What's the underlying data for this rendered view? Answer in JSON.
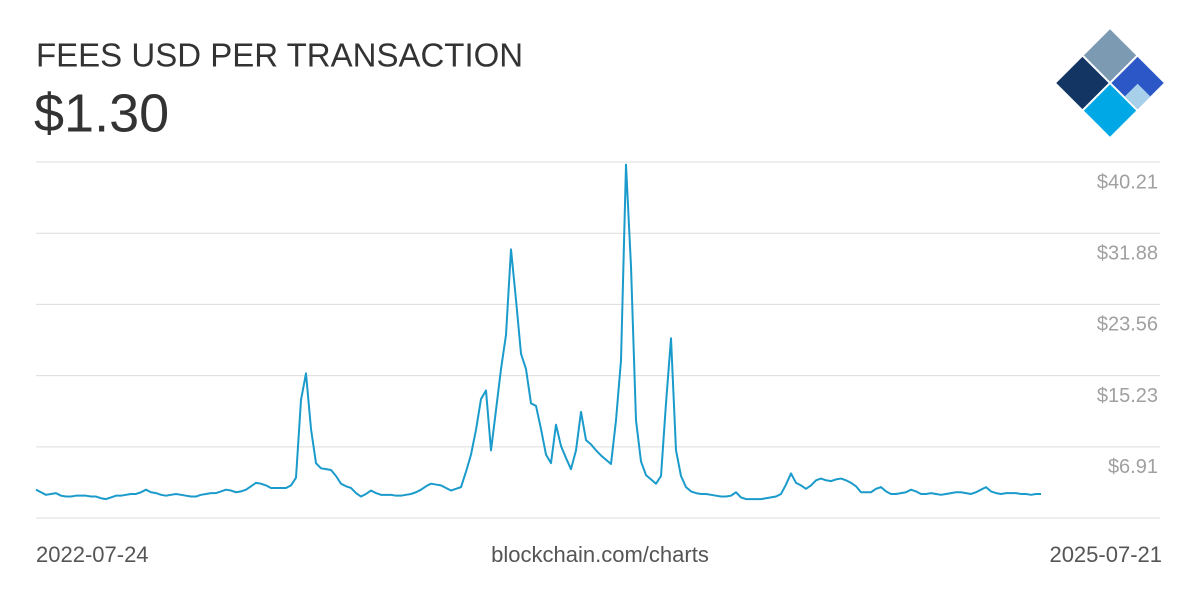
{
  "chart_data": {
    "type": "line",
    "title": "FEES USD PER TRANSACTION",
    "subtitle": "$1.30",
    "source": "blockchain.com/charts",
    "xlim": [
      "2022-07-24",
      "2025-07-21"
    ],
    "ylim": [
      -1.41,
      40.21
    ],
    "yticks": [
      {
        "value": 6.91,
        "label": "$6.91"
      },
      {
        "value": 15.23,
        "label": "$15.23"
      },
      {
        "value": 23.56,
        "label": "$23.56"
      },
      {
        "value": 31.88,
        "label": "$31.88"
      },
      {
        "value": 40.21,
        "label": "$40.21"
      }
    ],
    "grid": true,
    "color": "#1a9bcb",
    "values": [
      1.9,
      1.6,
      1.3,
      1.4,
      1.5,
      1.2,
      1.1,
      1.1,
      1.2,
      1.2,
      1.2,
      1.1,
      1.1,
      0.9,
      0.8,
      1.0,
      1.2,
      1.2,
      1.3,
      1.4,
      1.4,
      1.6,
      1.9,
      1.6,
      1.5,
      1.3,
      1.2,
      1.3,
      1.4,
      1.3,
      1.2,
      1.1,
      1.1,
      1.3,
      1.4,
      1.5,
      1.5,
      1.7,
      1.9,
      1.8,
      1.6,
      1.7,
      1.9,
      2.3,
      2.7,
      2.6,
      2.4,
      2.1,
      2.1,
      2.1,
      2.1,
      2.4,
      3.3,
      12.4,
      15.5,
      9.0,
      5.0,
      4.4,
      4.3,
      4.2,
      3.5,
      2.6,
      2.3,
      2.1,
      1.5,
      1.1,
      1.4,
      1.8,
      1.5,
      1.3,
      1.3,
      1.3,
      1.2,
      1.2,
      1.3,
      1.4,
      1.6,
      1.9,
      2.3,
      2.6,
      2.5,
      2.4,
      2.1,
      1.8,
      2.0,
      2.2,
      4.0,
      6.0,
      8.9,
      12.5,
      13.5,
      6.5,
      11.2,
      16.0,
      20.0,
      30.0,
      24.1,
      17.8,
      16.0,
      12.0,
      11.7,
      9.0,
      6.0,
      5.0,
      9.5,
      7.0,
      5.6,
      4.3,
      6.5,
      11.0,
      7.7,
      7.2,
      6.5,
      5.9,
      5.4,
      4.9,
      10.0,
      17.0,
      39.9,
      28.0,
      10.0,
      5.2,
      3.6,
      3.1,
      2.6,
      3.5,
      12.0,
      19.6,
      6.5,
      3.5,
      2.2,
      1.7,
      1.5,
      1.4,
      1.4,
      1.3,
      1.2,
      1.1,
      1.1,
      1.2,
      1.6,
      1.0,
      0.8,
      0.8,
      0.8,
      0.8,
      0.9,
      1.0,
      1.1,
      1.4,
      2.5,
      3.8,
      2.7,
      2.4,
      2.0,
      2.4,
      3.0,
      3.2,
      3.0,
      2.9,
      3.1,
      3.2,
      3.0,
      2.7,
      2.3,
      1.6,
      1.6,
      1.6,
      2.0,
      2.2,
      1.7,
      1.4,
      1.4,
      1.5,
      1.6,
      1.9,
      1.7,
      1.4,
      1.4,
      1.5,
      1.4,
      1.3,
      1.4,
      1.5,
      1.6,
      1.6,
      1.5,
      1.4,
      1.6,
      1.9,
      2.2,
      1.7,
      1.5,
      1.4,
      1.5,
      1.5,
      1.5,
      1.4,
      1.4,
      1.3,
      1.4,
      1.4
    ]
  }
}
